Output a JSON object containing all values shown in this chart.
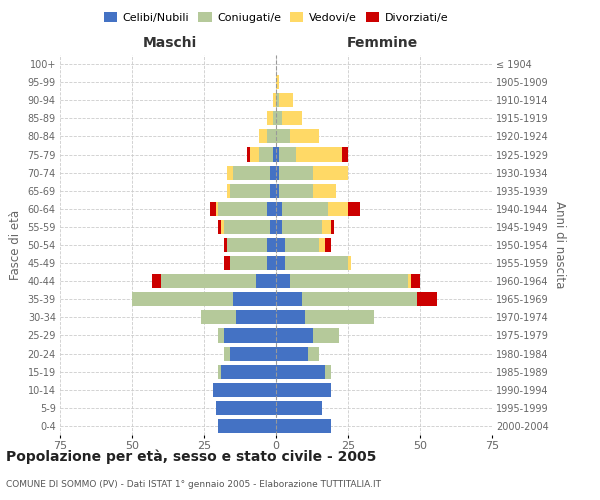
{
  "age_groups": [
    "0-4",
    "5-9",
    "10-14",
    "15-19",
    "20-24",
    "25-29",
    "30-34",
    "35-39",
    "40-44",
    "45-49",
    "50-54",
    "55-59",
    "60-64",
    "65-69",
    "70-74",
    "75-79",
    "80-84",
    "85-89",
    "90-94",
    "95-99",
    "100+"
  ],
  "birth_years": [
    "2000-2004",
    "1995-1999",
    "1990-1994",
    "1985-1989",
    "1980-1984",
    "1975-1979",
    "1970-1974",
    "1965-1969",
    "1960-1964",
    "1955-1959",
    "1950-1954",
    "1945-1949",
    "1940-1944",
    "1935-1939",
    "1930-1934",
    "1925-1929",
    "1920-1924",
    "1915-1919",
    "1910-1914",
    "1905-1909",
    "≤ 1904"
  ],
  "colors": {
    "celibi": "#4472c4",
    "coniugati": "#b5c99a",
    "vedovi": "#ffd966",
    "divorziati": "#cc0000"
  },
  "males": {
    "celibi": [
      20,
      21,
      22,
      19,
      16,
      18,
      14,
      15,
      7,
      3,
      3,
      2,
      3,
      2,
      2,
      1,
      0,
      0,
      0,
      0,
      0
    ],
    "coniugati": [
      0,
      0,
      0,
      1,
      2,
      2,
      12,
      35,
      33,
      13,
      14,
      16,
      17,
      14,
      13,
      5,
      3,
      1,
      0,
      0,
      0
    ],
    "vedovi": [
      0,
      0,
      0,
      0,
      0,
      0,
      0,
      0,
      0,
      0,
      0,
      1,
      1,
      1,
      2,
      3,
      3,
      2,
      1,
      0,
      0
    ],
    "divorziati": [
      0,
      0,
      0,
      0,
      0,
      0,
      0,
      0,
      3,
      2,
      1,
      1,
      2,
      0,
      0,
      1,
      0,
      0,
      0,
      0,
      0
    ]
  },
  "females": {
    "nubili": [
      19,
      16,
      19,
      17,
      11,
      13,
      10,
      9,
      5,
      3,
      3,
      2,
      2,
      1,
      1,
      1,
      0,
      0,
      0,
      0,
      0
    ],
    "coniugate": [
      0,
      0,
      0,
      2,
      4,
      9,
      24,
      40,
      41,
      22,
      12,
      14,
      16,
      12,
      12,
      6,
      5,
      2,
      1,
      0,
      0
    ],
    "vedove": [
      0,
      0,
      0,
      0,
      0,
      0,
      0,
      0,
      1,
      1,
      2,
      3,
      7,
      8,
      12,
      16,
      10,
      7,
      5,
      1,
      0
    ],
    "divorziate": [
      0,
      0,
      0,
      0,
      0,
      0,
      0,
      7,
      3,
      0,
      2,
      1,
      4,
      0,
      0,
      2,
      0,
      0,
      0,
      0,
      0
    ]
  },
  "title": "Popolazione per età, sesso e stato civile - 2005",
  "subtitle": "COMUNE DI SOMMO (PV) - Dati ISTAT 1° gennaio 2005 - Elaborazione TUTTITALIA.IT",
  "xlabel_left": "Maschi",
  "xlabel_right": "Femmine",
  "ylabel_left": "Fasce di età",
  "ylabel_right": "Anni di nascita",
  "xlim": 75,
  "legend_labels": [
    "Celibi/Nubili",
    "Coniugati/e",
    "Vedovi/e",
    "Divorziati/e"
  ],
  "bg_color": "#ffffff",
  "grid_color": "#cccccc"
}
